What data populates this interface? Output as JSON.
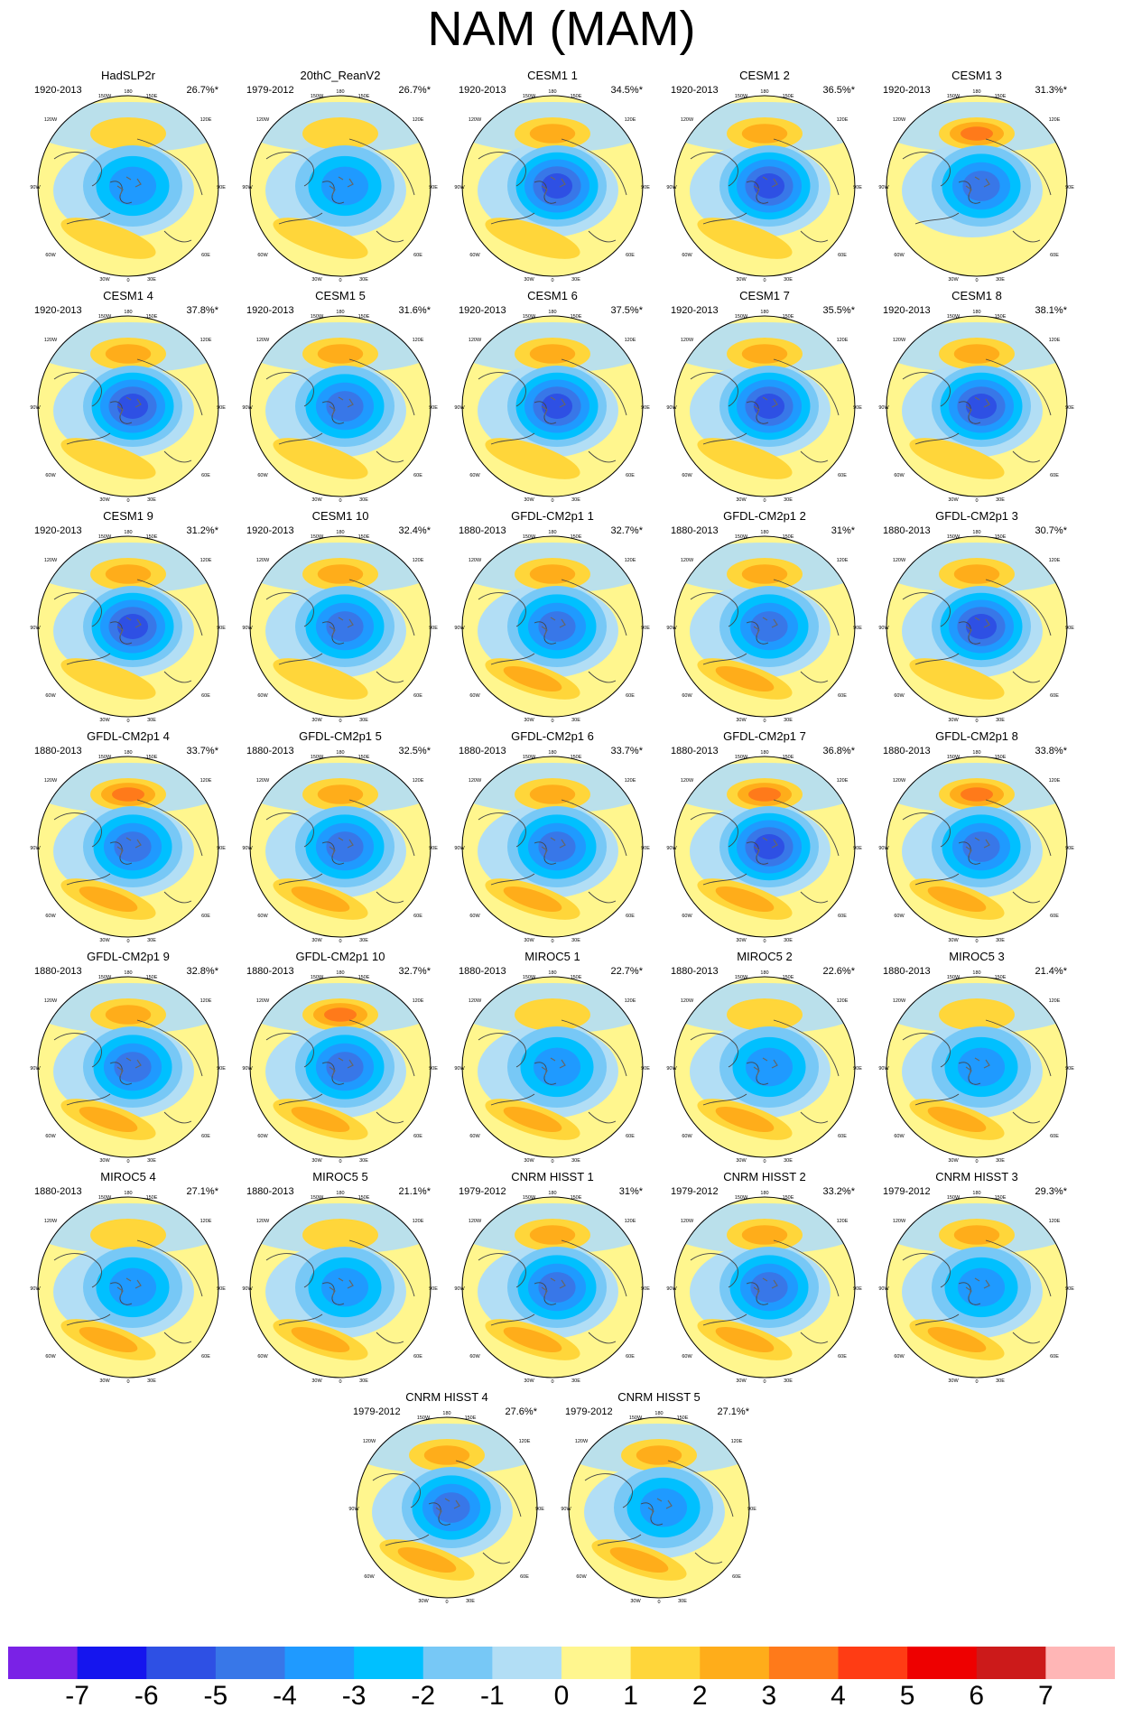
{
  "title": "NAM (MAM)",
  "map_graticule_labels": [
    "180",
    "150W",
    "150E",
    "120W",
    "120E",
    "90W",
    "90E",
    "60W",
    "60E",
    "30W",
    "30E",
    "0"
  ],
  "colorbar": {
    "colors": [
      "#7a22e6",
      "#1515ee",
      "#2e50e4",
      "#3877e8",
      "#1f9aff",
      "#00c0ff",
      "#77c8f6",
      "#b2def5",
      "#fff68e",
      "#ffd63a",
      "#ffad1a",
      "#ff7a1a",
      "#ff3c14",
      "#ee0000",
      "#cc1a1a",
      "#ffb6b6"
    ],
    "labels": [
      "-7",
      "-6",
      "-5",
      "-4",
      "-3",
      "-2",
      "-1",
      "0",
      "1",
      "2",
      "3",
      "4",
      "5",
      "6",
      "7"
    ]
  },
  "panels": [
    {
      "name": "HadSLP2r",
      "period": "1920-2013",
      "variance": "26.7%*",
      "ridge": 0.2,
      "low": 0.55,
      "atl": 0.3
    },
    {
      "name": "20thC_ReanV2",
      "period": "1979-2012",
      "variance": "26.7%*",
      "ridge": 0.15,
      "low": 0.5,
      "atl": 0.45
    },
    {
      "name": "CESM1 1",
      "period": "1920-2013",
      "variance": "34.5%*",
      "ridge": 0.6,
      "low": 0.8,
      "atl": 0.2
    },
    {
      "name": "CESM1 2",
      "period": "1920-2013",
      "variance": "36.5%*",
      "ridge": 0.6,
      "low": 0.8,
      "atl": 0.25
    },
    {
      "name": "CESM1 3",
      "period": "1920-2013",
      "variance": "31.3%*",
      "ridge": 0.65,
      "low": 0.7,
      "atl": 0.15
    },
    {
      "name": "CESM1 4",
      "period": "1920-2013",
      "variance": "37.8%*",
      "ridge": 0.45,
      "low": 0.85,
      "atl": 0.3
    },
    {
      "name": "CESM1 5",
      "period": "1920-2013",
      "variance": "31.6%*",
      "ridge": 0.55,
      "low": 0.7,
      "atl": 0.2
    },
    {
      "name": "CESM1 6",
      "period": "1920-2013",
      "variance": "37.5%*",
      "ridge": 0.55,
      "low": 0.75,
      "atl": 0.25
    },
    {
      "name": "CESM1 7",
      "period": "1920-2013",
      "variance": "35.5%*",
      "ridge": 0.5,
      "low": 0.75,
      "atl": 0.2
    },
    {
      "name": "CESM1 8",
      "period": "1920-2013",
      "variance": "38.1%*",
      "ridge": 0.55,
      "low": 0.85,
      "atl": 0.25
    },
    {
      "name": "CESM1 9",
      "period": "1920-2013",
      "variance": "31.2%*",
      "ridge": 0.6,
      "low": 0.75,
      "atl": 0.25
    },
    {
      "name": "CESM1 10",
      "period": "1920-2013",
      "variance": "32.4%*",
      "ridge": 0.55,
      "low": 0.7,
      "atl": 0.3
    },
    {
      "name": "GFDL-CM2p1 1",
      "period": "1880-2013",
      "variance": "32.7%*",
      "ridge": 0.5,
      "low": 0.7,
      "atl": 0.5
    },
    {
      "name": "GFDL-CM2p1 2",
      "period": "1880-2013",
      "variance": "31%*",
      "ridge": 0.55,
      "low": 0.7,
      "atl": 0.5
    },
    {
      "name": "GFDL-CM2p1 3",
      "period": "1880-2013",
      "variance": "30.7%*",
      "ridge": 0.55,
      "low": 0.75,
      "atl": 0.45
    },
    {
      "name": "GFDL-CM2p1 4",
      "period": "1880-2013",
      "variance": "33.7%*",
      "ridge": 0.7,
      "low": 0.7,
      "atl": 0.55
    },
    {
      "name": "GFDL-CM2p1 5",
      "period": "1880-2013",
      "variance": "32.5%*",
      "ridge": 0.6,
      "low": 0.65,
      "atl": 0.55
    },
    {
      "name": "GFDL-CM2p1 6",
      "period": "1880-2013",
      "variance": "33.7%*",
      "ridge": 0.6,
      "low": 0.7,
      "atl": 0.55
    },
    {
      "name": "GFDL-CM2p1 7",
      "period": "1880-2013",
      "variance": "36.8%*",
      "ridge": 0.65,
      "low": 0.75,
      "atl": 0.55
    },
    {
      "name": "GFDL-CM2p1 8",
      "period": "1880-2013",
      "variance": "33.8%*",
      "ridge": 0.7,
      "low": 0.7,
      "atl": 0.5
    },
    {
      "name": "GFDL-CM2p1 9",
      "period": "1880-2013",
      "variance": "32.8%*",
      "ridge": 0.6,
      "low": 0.7,
      "atl": 0.6
    },
    {
      "name": "GFDL-CM2p1 10",
      "period": "1880-2013",
      "variance": "32.7%*",
      "ridge": 0.75,
      "low": 0.7,
      "atl": 0.55
    },
    {
      "name": "MIROC5 1",
      "period": "1880-2013",
      "variance": "22.7%*",
      "ridge": 0.3,
      "low": 0.5,
      "atl": 0.5
    },
    {
      "name": "MIROC5 2",
      "period": "1880-2013",
      "variance": "22.6%*",
      "ridge": 0.3,
      "low": 0.5,
      "atl": 0.55
    },
    {
      "name": "MIROC5 3",
      "period": "1880-2013",
      "variance": "21.4%*",
      "ridge": 0.3,
      "low": 0.5,
      "atl": 0.5
    },
    {
      "name": "MIROC5 4",
      "period": "1880-2013",
      "variance": "27.1%*",
      "ridge": 0.3,
      "low": 0.55,
      "atl": 0.55
    },
    {
      "name": "MIROC5 5",
      "period": "1880-2013",
      "variance": "21.1%*",
      "ridge": 0.2,
      "low": 0.45,
      "atl": 0.5
    },
    {
      "name": "CNRM HISST 1",
      "period": "1979-2012",
      "variance": "31%*",
      "ridge": 0.55,
      "low": 0.6,
      "atl": 0.55
    },
    {
      "name": "CNRM HISST 2",
      "period": "1979-2012",
      "variance": "33.2%*",
      "ridge": 0.6,
      "low": 0.65,
      "atl": 0.55
    },
    {
      "name": "CNRM HISST 3",
      "period": "1979-2012",
      "variance": "29.3%*",
      "ridge": 0.45,
      "low": 0.55,
      "atl": 0.5
    },
    {
      "name": "CNRM HISST 4",
      "period": "1979-2012",
      "variance": "27.6%*",
      "ridge": 0.5,
      "low": 0.6,
      "atl": 0.55
    },
    {
      "name": "CNRM HISST 5",
      "period": "1979-2012",
      "variance": "27.1%*",
      "ridge": 0.55,
      "low": 0.55,
      "atl": 0.5
    }
  ]
}
